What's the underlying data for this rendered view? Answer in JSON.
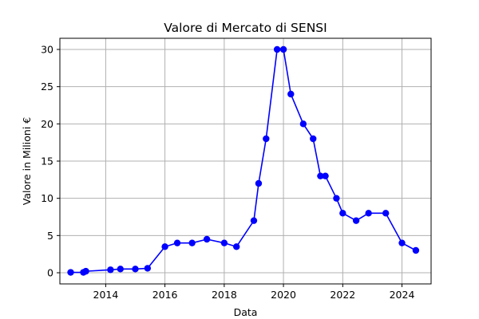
{
  "chart_data": {
    "type": "line",
    "title": "Valore di Mercato di SENSI",
    "xlabel": "Data",
    "ylabel": "Valore in Milioni €",
    "x_axis_type": "date",
    "xlim": [
      "2012-06-15",
      "2024-12-25"
    ],
    "ylim": [
      -1.5,
      31.5
    ],
    "x_ticks": [
      "2014",
      "2016",
      "2018",
      "2020",
      "2022",
      "2024"
    ],
    "y_ticks": [
      "0",
      "5",
      "10",
      "15",
      "20",
      "25",
      "30"
    ],
    "grid": true,
    "legend": "none",
    "series": [
      {
        "color": "#0000ff",
        "marker": "circle",
        "points": [
          {
            "x": "2012-10-26",
            "y": 0.05
          },
          {
            "x": "2013-04-01",
            "y": 0.05
          },
          {
            "x": "2013-05-01",
            "y": 0.2
          },
          {
            "x": "2014-03-01",
            "y": 0.4
          },
          {
            "x": "2014-07-01",
            "y": 0.5
          },
          {
            "x": "2015-01-01",
            "y": 0.5
          },
          {
            "x": "2015-06-01",
            "y": 0.6
          },
          {
            "x": "2016-01-01",
            "y": 3.5
          },
          {
            "x": "2016-06-01",
            "y": 4
          },
          {
            "x": "2016-12-01",
            "y": 4
          },
          {
            "x": "2017-06-01",
            "y": 4.5
          },
          {
            "x": "2018-01-01",
            "y": 4
          },
          {
            "x": "2018-06-01",
            "y": 3.5
          },
          {
            "x": "2019-01-01",
            "y": 7
          },
          {
            "x": "2019-03-01",
            "y": 12
          },
          {
            "x": "2019-06-01",
            "y": 18
          },
          {
            "x": "2019-10-15",
            "y": 30
          },
          {
            "x": "2020-01-01",
            "y": 30
          },
          {
            "x": "2020-04-01",
            "y": 24
          },
          {
            "x": "2020-09-01",
            "y": 20
          },
          {
            "x": "2021-01-01",
            "y": 18
          },
          {
            "x": "2021-04-01",
            "y": 13
          },
          {
            "x": "2021-06-01",
            "y": 13
          },
          {
            "x": "2021-10-15",
            "y": 10
          },
          {
            "x": "2022-01-01",
            "y": 8
          },
          {
            "x": "2022-06-15",
            "y": 7
          },
          {
            "x": "2022-11-15",
            "y": 8
          },
          {
            "x": "2023-06-15",
            "y": 8
          },
          {
            "x": "2024-01-01",
            "y": 4
          },
          {
            "x": "2024-06-20",
            "y": 3
          }
        ]
      }
    ]
  }
}
